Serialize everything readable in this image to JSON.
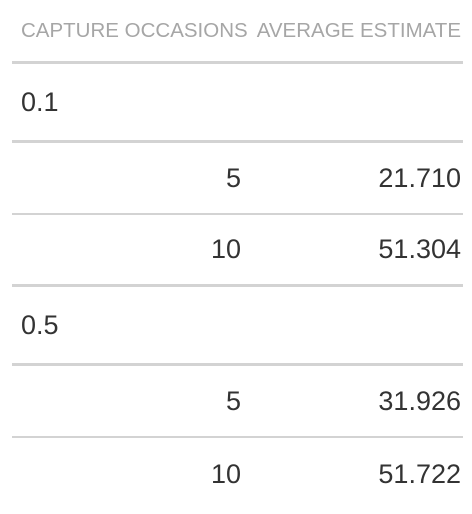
{
  "table": {
    "headers": {
      "capture_occasions": "CAPTURE OCCASIONS",
      "average_estimate": "AVERAGE ESTIMATE"
    },
    "groups": [
      {
        "label": "0.1",
        "rows": [
          {
            "capture_occasions": "5",
            "average_estimate": "21.710"
          },
          {
            "capture_occasions": "10",
            "average_estimate": "51.304"
          }
        ]
      },
      {
        "label": "0.5",
        "rows": [
          {
            "capture_occasions": "5",
            "average_estimate": "31.926"
          },
          {
            "capture_occasions": "10",
            "average_estimate": "51.722"
          }
        ]
      }
    ]
  }
}
